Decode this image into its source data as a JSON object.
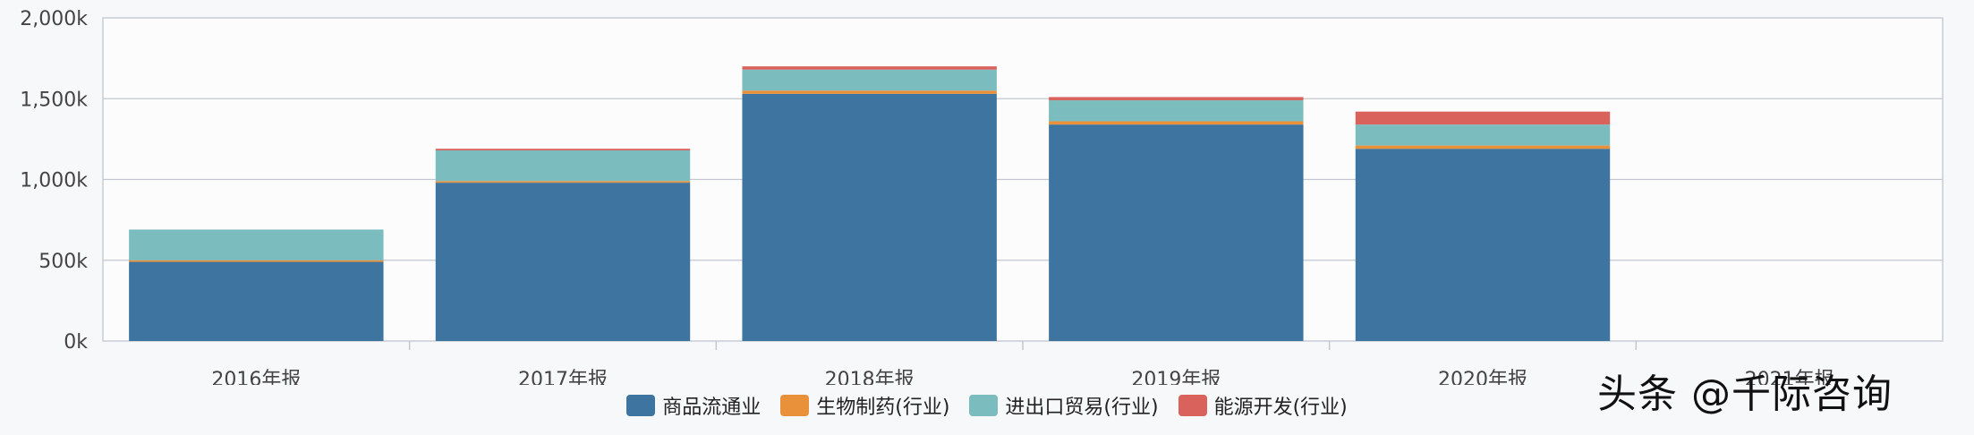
{
  "chart_data": {
    "type": "bar",
    "stacked": true,
    "categories": [
      "2016年报",
      "2017年报",
      "2018年报",
      "2019年报",
      "2020年报",
      "2021年报"
    ],
    "series": [
      {
        "name": "商品流通业",
        "color": "#3e74a0",
        "values": [
          490,
          980,
          1530,
          1340,
          1190,
          0
        ]
      },
      {
        "name": "生物制药(行业)",
        "color": "#e8913a",
        "values": [
          10,
          10,
          20,
          20,
          20,
          0
        ]
      },
      {
        "name": "进出口贸易(行业)",
        "color": "#7bbdbf",
        "values": [
          190,
          190,
          130,
          130,
          130,
          0
        ]
      },
      {
        "name": "能源开发(行业)",
        "color": "#d9625c",
        "values": [
          0,
          10,
          20,
          20,
          80,
          0
        ]
      }
    ],
    "yticks": [
      "0k",
      "500k",
      "1,000k",
      "1,500k",
      "2,000k"
    ],
    "ylim": [
      0,
      2000
    ],
    "grid": true,
    "legend_position": "bottom"
  },
  "watermark": "头条 @千际咨询"
}
